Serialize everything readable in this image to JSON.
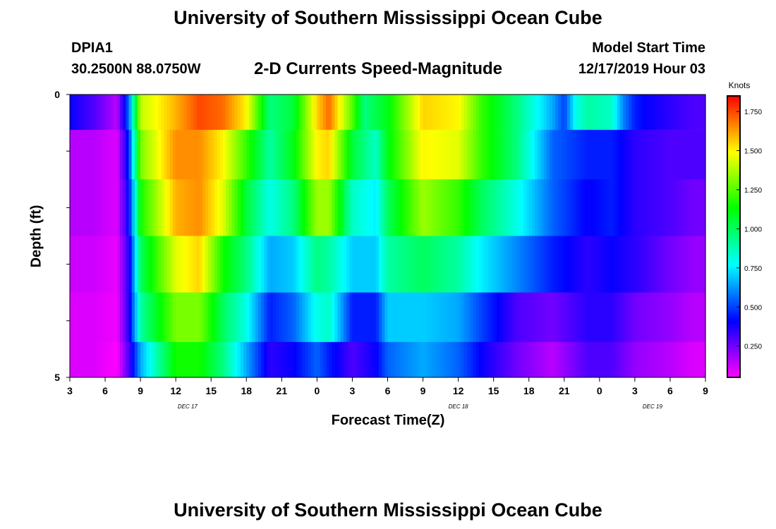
{
  "header": {
    "title": "University of Southern Mississippi Ocean Cube",
    "station_id": "DPIA1",
    "station_coords": "30.2500N 88.0750W",
    "plot_title": "2-D Currents Speed-Magnitude",
    "model_label": "Model Start Time",
    "model_time": "12/17/2019 Hour 03"
  },
  "footer": {
    "title": "University of Southern Mississippi Ocean Cube"
  },
  "chart_data": {
    "type": "heatmap",
    "title": "2-D Currents Speed-Magnitude",
    "xlabel": "Forecast Time(Z)",
    "ylabel": "Depth (ft)",
    "x_unit": "hours since DEC 17 03Z",
    "x_range": [
      0,
      54
    ],
    "y_range": [
      0,
      5
    ],
    "y_tick_labels": [
      "0",
      "5"
    ],
    "x_tick_labels": [
      "3",
      "6",
      "9",
      "12",
      "15",
      "18",
      "21",
      "0",
      "3",
      "6",
      "9",
      "12",
      "15",
      "18",
      "21",
      "0",
      "3",
      "6",
      "9"
    ],
    "date_labels": [
      {
        "label": "DEC 17",
        "x": 10
      },
      {
        "label": "DEC 18",
        "x": 33
      },
      {
        "label": "DEC 19",
        "x": 49.5
      }
    ],
    "colorbar": {
      "title": "Knots",
      "range": [
        0.05,
        1.85
      ],
      "ticks": [
        "1.750",
        "1.500",
        "1.250",
        "1.000",
        "0.750",
        "0.500",
        "0.250"
      ],
      "tick_values": [
        1.75,
        1.5,
        1.25,
        1.0,
        0.75,
        0.5,
        0.25
      ]
    },
    "depth_bins": [
      0.25,
      1.0,
      2.0,
      3.0,
      4.0,
      4.75
    ],
    "series": [
      {
        "name": "0.25 ft",
        "x": [
          0,
          2,
          4,
          5,
          6,
          9,
          11,
          13,
          15,
          17,
          19,
          21,
          22,
          24,
          25,
          27,
          30,
          33,
          35,
          38,
          41,
          42,
          43,
          44,
          46,
          47,
          48,
          49,
          51,
          53,
          54
        ],
        "values": [
          0.4,
          0.3,
          0.15,
          0.55,
          1.4,
          1.6,
          1.75,
          1.7,
          1.5,
          0.95,
          1.05,
          1.55,
          1.7,
          1.25,
          0.95,
          1.1,
          1.55,
          1.5,
          1.2,
          0.95,
          0.65,
          0.5,
          0.8,
          0.9,
          0.85,
          0.6,
          0.45,
          0.4,
          0.35,
          0.3,
          0.3
        ]
      },
      {
        "name": "1 ft",
        "x": [
          0,
          2,
          4,
          5,
          6,
          9,
          11,
          13,
          15,
          17,
          19,
          21,
          22,
          24,
          26,
          27,
          30,
          33,
          35,
          38,
          41,
          44,
          46,
          48,
          51,
          53,
          54
        ],
        "values": [
          0.15,
          0.15,
          0.1,
          0.45,
          1.3,
          1.65,
          1.65,
          1.5,
          1.2,
          0.9,
          1.1,
          1.5,
          1.55,
          1.05,
          0.85,
          1.1,
          1.5,
          1.45,
          1.2,
          0.95,
          0.55,
          0.45,
          0.45,
          0.35,
          0.3,
          0.3,
          0.3
        ]
      },
      {
        "name": "2 ft",
        "x": [
          0,
          2,
          4,
          5,
          6,
          9,
          11,
          13,
          15,
          17,
          19,
          21,
          22,
          24,
          26,
          27,
          30,
          33,
          35,
          38,
          41,
          44,
          46,
          48,
          51,
          53,
          54
        ],
        "values": [
          0.15,
          0.15,
          0.1,
          0.4,
          1.15,
          1.6,
          1.65,
          1.45,
          1.05,
          0.8,
          0.95,
          1.35,
          1.35,
          0.85,
          0.75,
          1.0,
          1.35,
          1.2,
          1.0,
          0.8,
          0.55,
          0.4,
          0.45,
          0.35,
          0.3,
          0.25,
          0.25
        ]
      },
      {
        "name": "3 ft",
        "x": [
          0,
          2,
          4,
          5,
          6,
          9,
          11,
          13,
          15,
          17,
          19,
          21,
          22,
          24,
          26,
          27,
          30,
          33,
          35,
          38,
          41,
          44,
          46,
          48,
          51,
          53,
          54
        ],
        "values": [
          0.12,
          0.12,
          0.08,
          0.35,
          1.0,
          1.45,
          1.55,
          1.15,
          0.95,
          0.65,
          0.7,
          0.95,
          0.9,
          0.7,
          0.7,
          0.9,
          1.0,
          0.9,
          0.75,
          0.6,
          0.45,
          0.35,
          0.4,
          0.35,
          0.25,
          0.2,
          0.2
        ]
      },
      {
        "name": "4 ft",
        "x": [
          0,
          2,
          4,
          5,
          6,
          9,
          11,
          13,
          15,
          17,
          19,
          21,
          22,
          24,
          26,
          27,
          30,
          33,
          35,
          38,
          41,
          44,
          46,
          48,
          51,
          53,
          54
        ],
        "values": [
          0.1,
          0.1,
          0.07,
          0.35,
          0.9,
          1.3,
          1.3,
          1.0,
          0.8,
          0.45,
          0.55,
          0.8,
          0.85,
          0.45,
          0.45,
          0.7,
          0.7,
          0.65,
          0.5,
          0.3,
          0.25,
          0.35,
          0.35,
          0.25,
          0.2,
          0.15,
          0.15
        ]
      },
      {
        "name": "4.75 ft",
        "x": [
          0,
          2,
          4,
          5,
          6,
          9,
          11,
          13,
          15,
          17,
          19,
          21,
          22,
          24,
          26,
          27,
          30,
          33,
          35,
          38,
          41,
          44,
          46,
          48,
          51,
          53,
          54
        ],
        "values": [
          0.1,
          0.1,
          0.05,
          0.3,
          0.65,
          1.15,
          1.15,
          0.95,
          0.65,
          0.35,
          0.4,
          0.55,
          0.45,
          0.3,
          0.4,
          0.55,
          0.65,
          0.55,
          0.4,
          0.25,
          0.15,
          0.3,
          0.3,
          0.2,
          0.15,
          0.1,
          0.1
        ]
      }
    ]
  }
}
